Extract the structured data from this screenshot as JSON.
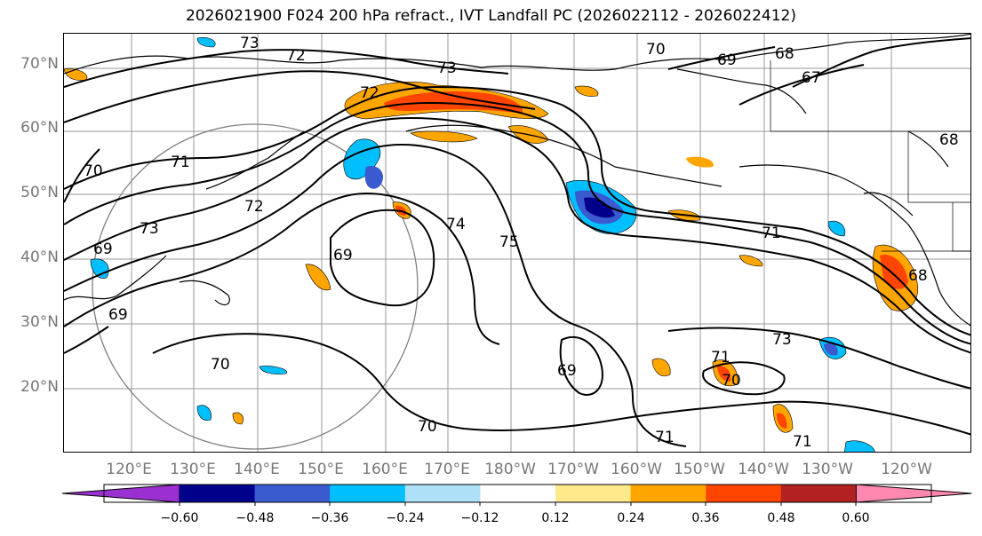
{
  "title": "2026021900 F024 200 hPa refract., IVT Landfall PC (2026022112 - 2026022412)",
  "lat_labels": [
    "70°N",
    "60°N",
    "50°N",
    "40°N",
    "30°N",
    "20°N"
  ],
  "lon_labels": [
    "120°E",
    "130°E",
    "140°E",
    "150°E",
    "160°E",
    "170°E",
    "180°W",
    "170°W",
    "160°W",
    "150°W",
    "140°W",
    "130°W",
    "120°W"
  ],
  "contour_labels": [
    "73",
    "72",
    "70",
    "69",
    "68",
    "67",
    "68",
    "72",
    "73",
    "70",
    "71",
    "73",
    "69",
    "72",
    "69",
    "74",
    "75",
    "71",
    "68",
    "73",
    "70",
    "71",
    "70",
    "69",
    "70",
    "71",
    "71",
    "69"
  ],
  "colorbar": {
    "ticks": [
      "−0.60",
      "−0.48",
      "−0.36",
      "−0.24",
      "−0.12",
      "0.12",
      "0.24",
      "0.36",
      "0.48",
      "0.60"
    ],
    "colors": [
      "#9b30d0",
      "#00008b",
      "#3a5bd0",
      "#00bfff",
      "#aee0f8",
      "#ffffff",
      "#ffe98a",
      "#ffa500",
      "#ff4500",
      "#b22222",
      "#ff88b0"
    ]
  }
}
